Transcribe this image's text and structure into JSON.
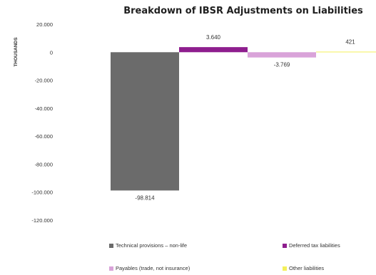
{
  "chart_data": {
    "type": "bar",
    "title": "Breakdown of IBSR Adjustments on Liabilities",
    "ylabel": "THOUSANDS",
    "xlabel": "",
    "ylim": [
      -120000,
      20000
    ],
    "yticks": [
      20000,
      0,
      -20000,
      -40000,
      -60000,
      -80000,
      -100000,
      -120000
    ],
    "ytick_labels": [
      "20.000",
      "0",
      "-20.000",
      "-40.000",
      "-60.000",
      "-80.000",
      "-100.000",
      "-120.000"
    ],
    "grid": false,
    "legend_position": "bottom",
    "series": [
      {
        "name": "Technical provisions – non-life",
        "value": -98814,
        "label": "-98.814",
        "color": "#6b6b6b"
      },
      {
        "name": "Deferred tax liabilities",
        "value": 3640,
        "label": "3.640",
        "color": "#8e1e8e"
      },
      {
        "name": "Payables (trade, not insurance)",
        "value": -3769,
        "label": "-3.769",
        "color": "#d9a3d9"
      },
      {
        "name": "Other liabilities",
        "value": 421,
        "label": "421",
        "color": "#f4f05a"
      }
    ]
  }
}
